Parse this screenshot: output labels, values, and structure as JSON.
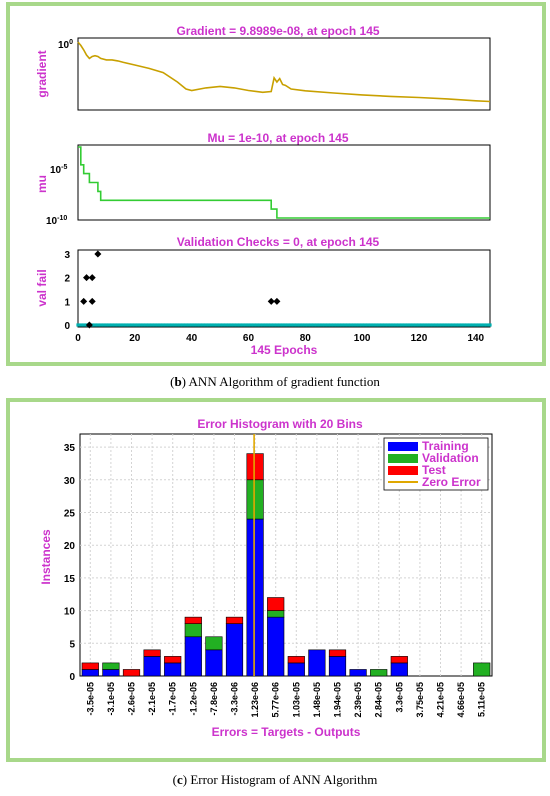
{
  "captions": {
    "b_letter": "b",
    "b_text": " ANN Algorithm of gradient function",
    "c_letter": "c",
    "c_text": " Error Histogram of ANN Algorithm"
  },
  "colors": {
    "gradient_line": "#c8a000",
    "mu_line": "#33cc33",
    "valfail_marker": "#00b0b0",
    "training": "#0000ff",
    "validation": "#22b022",
    "test": "#ff0000",
    "zero_error": "#e0a800",
    "title": "#cc33cc",
    "frame_border": "#a8d88a"
  },
  "chart_data": [
    {
      "type": "line",
      "title": "Gradient = 9.8989e-08, at epoch 145",
      "ylabel": "gradient",
      "xlabel": "",
      "yscale": "log",
      "ylim": [
        1e-08,
        3
      ],
      "xlim": [
        0,
        145
      ],
      "y_tick_labels": [
        "10^0"
      ],
      "x": [
        0,
        1,
        2,
        3,
        4,
        5,
        6,
        7,
        8,
        10,
        12,
        14,
        16,
        20,
        25,
        30,
        35,
        38,
        40,
        45,
        50,
        55,
        60,
        65,
        68,
        69,
        70,
        71,
        72,
        73,
        75,
        80,
        90,
        100,
        110,
        120,
        130,
        140,
        145
      ],
      "y": [
        1.0,
        0.4,
        0.12,
        0.03,
        0.012,
        0.02,
        0.025,
        0.02,
        0.012,
        0.008,
        0.008,
        0.006,
        0.004,
        0.002,
        0.0008,
        0.00025,
        2e-05,
        3e-06,
        2e-06,
        4e-06,
        6e-06,
        4e-06,
        2e-06,
        1.2e-06,
        1.5e-06,
        6e-05,
        2e-05,
        5e-05,
        1e-05,
        8e-06,
        3e-06,
        1.8e-06,
        1e-06,
        6e-07,
        4e-07,
        3e-07,
        2e-07,
        1.2e-07,
        9.8989e-08
      ]
    },
    {
      "type": "line",
      "title": "Mu = 1e-10, at epoch 145",
      "ylabel": "mu",
      "xlabel": "",
      "yscale": "log",
      "ylim": [
        1e-10,
        0.01
      ],
      "xlim": [
        0,
        145
      ],
      "y_tick_labels": [
        "10^-5",
        "10^-10"
      ],
      "x": [
        0,
        1,
        1,
        2,
        2,
        4,
        4,
        7,
        7,
        8,
        8,
        68,
        68,
        70,
        70,
        145
      ],
      "y": [
        0.01,
        0.01,
        0.0001,
        0.0001,
        1e-05,
        1e-05,
        1e-06,
        1e-06,
        1e-07,
        1e-07,
        1e-08,
        1e-08,
        1e-09,
        1e-09,
        1e-10,
        1e-10
      ]
    },
    {
      "type": "scatter",
      "title": "Validation Checks = 0, at epoch 145",
      "ylabel": "val fail",
      "xlabel": "145 Epochs",
      "xlim": [
        0,
        145
      ],
      "ylim": [
        0,
        3
      ],
      "x_ticks": [
        0,
        20,
        40,
        60,
        80,
        100,
        120,
        140
      ],
      "y_ticks": [
        0,
        1,
        2,
        3
      ],
      "highlight_points": [
        {
          "x": 2,
          "y": 1
        },
        {
          "x": 3,
          "y": 2
        },
        {
          "x": 4,
          "y": 0
        },
        {
          "x": 5,
          "y": 1
        },
        {
          "x": 5,
          "y": 2
        },
        {
          "x": 7,
          "y": 3
        },
        {
          "x": 68,
          "y": 1
        },
        {
          "x": 70,
          "y": 1
        }
      ],
      "baseline_y": 0,
      "baseline_range": [
        0,
        145
      ]
    },
    {
      "type": "bar",
      "stacked": true,
      "title": "Error Histogram with 20 Bins",
      "ylabel": "Instances",
      "xlabel": "Errors = Targets - Outputs",
      "ylim": [
        0,
        37
      ],
      "y_ticks": [
        0,
        5,
        10,
        15,
        20,
        25,
        30,
        35
      ],
      "categories": [
        "-3.5e-05",
        "-3.1e-05",
        "-2.6e-05",
        "-2.1e-05",
        "-1.7e-05",
        "-1.2e-05",
        "-7.8e-06",
        "-3.3e-06",
        "1.23e-06",
        "5.77e-06",
        "1.03e-05",
        "1.48e-05",
        "1.94e-05",
        "2.39e-05",
        "2.84e-05",
        "3.3e-05",
        "3.75e-05",
        "4.21e-05",
        "4.66e-05",
        "5.11e-05"
      ],
      "series": [
        {
          "name": "Training",
          "values": [
            1,
            1,
            0,
            3,
            2,
            6,
            4,
            8,
            24,
            9,
            2,
            4,
            3,
            1,
            0,
            2,
            0,
            0,
            0,
            0
          ]
        },
        {
          "name": "Validation",
          "values": [
            0,
            1,
            0,
            0,
            0,
            2,
            2,
            0,
            6,
            1,
            0,
            0,
            0,
            0,
            1,
            0,
            0,
            0,
            0,
            2
          ]
        },
        {
          "name": "Test",
          "values": [
            1,
            0,
            1,
            1,
            1,
            1,
            0,
            1,
            4,
            2,
            1,
            0,
            1,
            0,
            0,
            1,
            0,
            0,
            0,
            0
          ]
        }
      ],
      "zero_error_line": {
        "name": "Zero Error",
        "category_index": 8
      },
      "legend_position": "top-right",
      "grid": true
    }
  ]
}
